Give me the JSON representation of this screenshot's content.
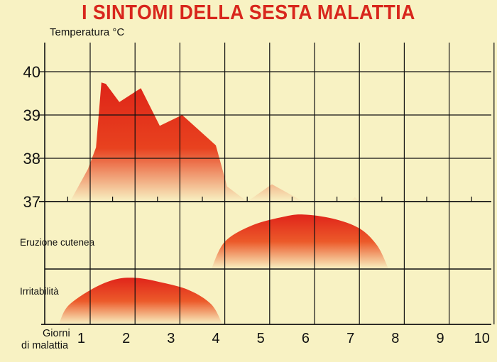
{
  "title": "I SINTOMI DELLA SESTA MALATTIA",
  "colors": {
    "background": "#f8f2c3",
    "title": "#d8261c",
    "fill_dark": "#e0241a",
    "fill_light": "#f8f2c3",
    "grid": "#111111"
  },
  "chart_data": {
    "type": "area",
    "title": "I SINTOMI DELLA SESTA MALATTIA",
    "xlabel": "Giorni di malattia",
    "xlabel_lines": [
      "Giorni",
      "di malattia"
    ],
    "x_ticks": [
      1,
      2,
      3,
      4,
      5,
      6,
      7,
      8,
      9,
      10
    ],
    "xlim": [
      0.25,
      10.3
    ],
    "grid": true,
    "panels": [
      {
        "name": "Temperatura",
        "ylabel": "Temperatura °C",
        "y_ticks": [
          37,
          38,
          39,
          40
        ],
        "ylim": [
          37,
          40.6
        ],
        "points": [
          [
            0.55,
            37
          ],
          [
            0.95,
            37.75
          ],
          [
            1.13,
            38.25
          ],
          [
            1.25,
            39.75
          ],
          [
            1.35,
            39.72
          ],
          [
            1.65,
            39.3
          ],
          [
            2.13,
            39.62
          ],
          [
            2.55,
            38.75
          ],
          [
            3.05,
            39.0
          ],
          [
            3.8,
            38.3
          ],
          [
            4.05,
            37.35
          ],
          [
            4.5,
            37.0
          ],
          [
            5.05,
            37.4
          ],
          [
            5.75,
            37.0
          ],
          [
            6.8,
            37.0
          ],
          [
            6.9,
            37.1
          ],
          [
            7.0,
            37.0
          ]
        ]
      },
      {
        "name": "Eruzione cutenea",
        "ylabel": "Eruzione cutenea",
        "ylim": [
          0,
          1
        ],
        "points": [
          [
            3.7,
            0
          ],
          [
            4.0,
            0.47
          ],
          [
            4.6,
            0.75
          ],
          [
            5.3,
            0.9
          ],
          [
            5.75,
            0.94
          ],
          [
            6.4,
            0.87
          ],
          [
            7.0,
            0.7
          ],
          [
            7.4,
            0.4
          ],
          [
            7.65,
            0
          ]
        ]
      },
      {
        "name": "Irritabilità",
        "ylabel": "Irritabilità",
        "ylim": [
          0,
          1
        ],
        "points": [
          [
            0.3,
            0
          ],
          [
            0.5,
            0.38
          ],
          [
            1.0,
            0.72
          ],
          [
            1.5,
            0.93
          ],
          [
            1.95,
            0.98
          ],
          [
            2.5,
            0.9
          ],
          [
            3.2,
            0.72
          ],
          [
            3.7,
            0.42
          ],
          [
            3.95,
            0
          ]
        ]
      }
    ]
  }
}
